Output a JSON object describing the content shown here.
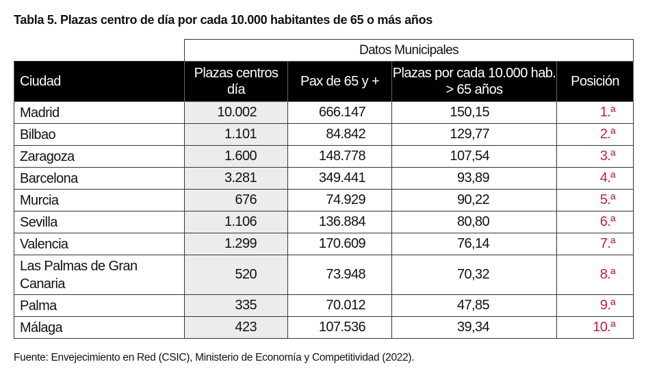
{
  "title": "Tabla 5. Plazas centro de día por cada 10.000 habitantes de 65 o más años",
  "group_header": "Datos Municipales",
  "columns": [
    "Ciudad",
    "Plazas centros día",
    "Pax de 65 y +",
    "Plazas por cada 10.000 hab. > 65 años",
    "Posición"
  ],
  "rows": [
    [
      "Madrid",
      "10.002",
      "666.147",
      "150,15",
      "1.ª"
    ],
    [
      "Bilbao",
      "1.101",
      "84.842",
      "129,77",
      "2.ª"
    ],
    [
      "Zaragoza",
      "1.600",
      "148.778",
      "107,54",
      "3.ª"
    ],
    [
      "Barcelona",
      "3.281",
      "349.441",
      "93,89",
      "4.ª"
    ],
    [
      "Murcia",
      "676",
      "74.929",
      "90,22",
      "5.ª"
    ],
    [
      "Sevilla",
      "1.106",
      "136.884",
      "80,80",
      "6.ª"
    ],
    [
      "Valencia",
      "1.299",
      "170.609",
      "76,14",
      "7.ª"
    ],
    [
      "Las Palmas de Gran Canaria",
      "520",
      "73.948",
      "70,32",
      "8.ª"
    ],
    [
      "Palma",
      "335",
      "70.012",
      "47,85",
      "9.ª"
    ],
    [
      "Málaga",
      "423",
      "107.536",
      "39,34",
      "10.ª"
    ]
  ],
  "position_color": "#c0213a",
  "source": "Fuente: Envejecimiento en Red (CSIC), Ministerio de Economía y Competitividad (2022)."
}
